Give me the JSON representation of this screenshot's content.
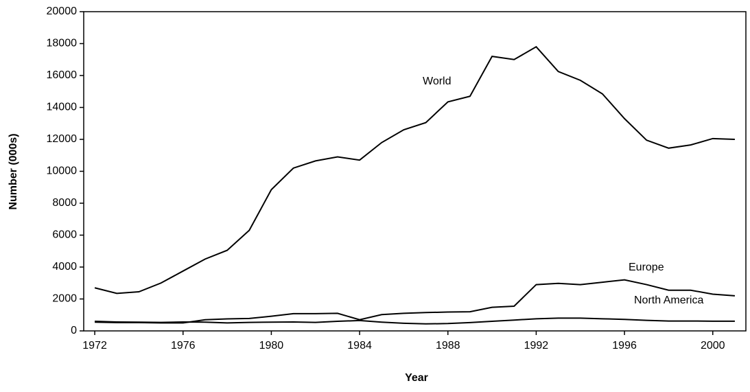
{
  "chart_data": {
    "type": "line",
    "x_label": "Year",
    "y_label": "Number (000s)",
    "x": [
      1972,
      1973,
      1974,
      1975,
      1976,
      1977,
      1978,
      1979,
      1980,
      1981,
      1982,
      1983,
      1984,
      1985,
      1986,
      1987,
      1988,
      1989,
      1990,
      1991,
      1992,
      1993,
      1994,
      1995,
      1996,
      1997,
      1998,
      1999,
      2000,
      2001
    ],
    "series": [
      {
        "name": "World",
        "color": "#000000",
        "values": [
          2700,
          2350,
          2450,
          3000,
          3750,
          4500,
          5050,
          6300,
          8850,
          10200,
          10650,
          10900,
          10700,
          11800,
          12600,
          13050,
          14350,
          14700,
          17200,
          17000,
          17800,
          16250,
          15700,
          14850,
          13300,
          11950,
          11450,
          11650,
          12050,
          12000
        ]
      },
      {
        "name": "Europe",
        "color": "#000000",
        "values": [
          550,
          520,
          520,
          500,
          500,
          700,
          750,
          780,
          920,
          1080,
          1080,
          1100,
          700,
          1020,
          1100,
          1150,
          1180,
          1200,
          1480,
          1550,
          2900,
          2980,
          2900,
          3050,
          3200,
          2900,
          2550,
          2550,
          2300,
          2200
        ]
      },
      {
        "name": "North America",
        "color": "#000000",
        "values": [
          600,
          560,
          550,
          530,
          560,
          550,
          500,
          530,
          550,
          560,
          530,
          600,
          650,
          550,
          480,
          440,
          460,
          520,
          600,
          680,
          760,
          800,
          800,
          760,
          720,
          660,
          620,
          620,
          610,
          610
        ]
      }
    ],
    "xlim": [
      1971.5,
      2001.5
    ],
    "xticks": [
      1972,
      1976,
      1980,
      1984,
      1988,
      1992,
      1996,
      2000
    ],
    "ylim": [
      0,
      20000
    ],
    "yticks": [
      0,
      2000,
      4000,
      6000,
      8000,
      10000,
      12000,
      14000,
      16000,
      18000,
      20000
    ],
    "grid": false
  }
}
